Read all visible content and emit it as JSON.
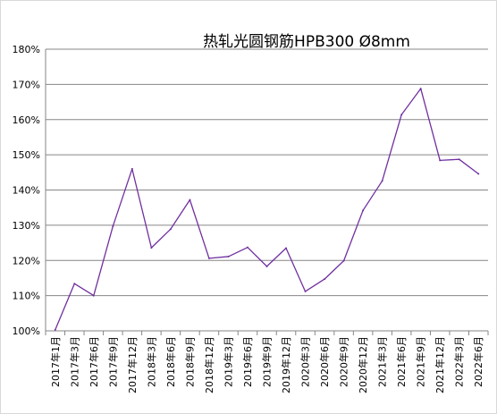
{
  "chart_data": {
    "type": "line",
    "title": "热轧光圆钢筋HPB300 Ø8mm",
    "xlabel": "",
    "ylabel": "",
    "categories": [
      "2017年1月",
      "2017年3月",
      "2017年6月",
      "2017年9月",
      "2017年12月",
      "2018年3月",
      "2018年6月",
      "2018年9月",
      "2018年12月",
      "2019年3月",
      "2019年6月",
      "2019年9月",
      "2019年12月",
      "2020年3月",
      "2020年6月",
      "2020年9月",
      "2020年12月",
      "2021年3月",
      "2021年6月",
      "2021年9月",
      "2021年12月",
      "2022年3月",
      "2022年6月"
    ],
    "series": [
      {
        "values": [
          100.3,
          113.4,
          110.0,
          129.7,
          146.0,
          123.6,
          128.9,
          137.2,
          120.6,
          121.1,
          123.7,
          118.3,
          123.5,
          111.2,
          114.7,
          119.9,
          134.2,
          142.6,
          161.4,
          168.8,
          148.4,
          148.7,
          144.6
        ]
      }
    ],
    "y_ticks": [
      "100%",
      "110%",
      "120%",
      "130%",
      "140%",
      "150%",
      "160%",
      "170%",
      "180%"
    ],
    "ylim": [
      100,
      180
    ],
    "grid": true,
    "legend": "none",
    "colors": {
      "line": "#7030a0",
      "grid": "#868686",
      "axis": "#868686"
    }
  }
}
